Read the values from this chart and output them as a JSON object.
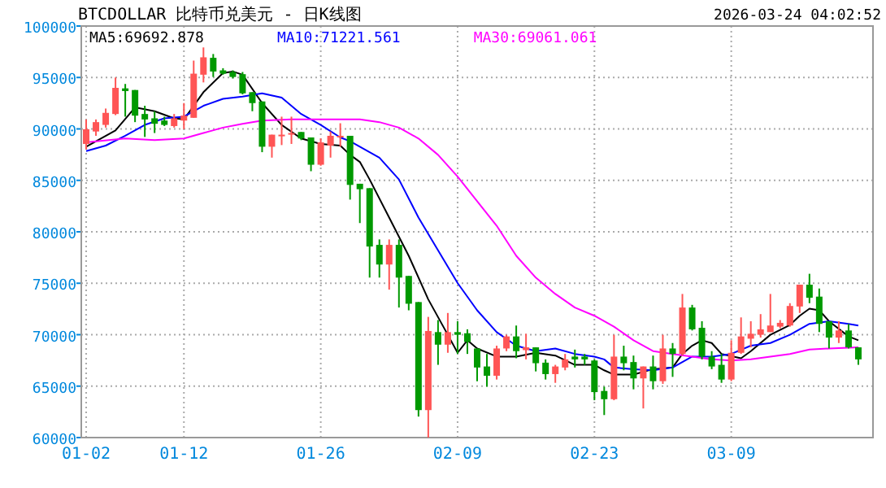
{
  "chart_data": {
    "type": "candlestick",
    "title": "BTCDOLLAR  比特币兑美元 - 日K线图",
    "subtitle": "2026-03-24 04:02:52",
    "x": [
      "2026-01-02",
      "2026-01-03",
      "2026-01-04",
      "2026-01-05",
      "2026-01-06",
      "2026-01-07",
      "2026-01-08",
      "2026-01-09",
      "2026-01-10",
      "2026-01-11",
      "2026-01-12",
      "2026-01-13",
      "2026-01-14",
      "2026-01-15",
      "2026-01-16",
      "2026-01-17",
      "2026-01-18",
      "2026-01-19",
      "2026-01-20",
      "2026-01-21",
      "2026-01-22",
      "2026-01-23",
      "2026-01-24",
      "2026-01-25",
      "2026-01-26",
      "2026-01-27",
      "2026-01-28",
      "2026-01-29",
      "2026-01-30",
      "2026-01-31",
      "2026-02-01",
      "2026-02-02",
      "2026-02-03",
      "2026-02-04",
      "2026-02-05",
      "2026-02-06",
      "2026-02-07",
      "2026-02-08",
      "2026-02-09",
      "2026-02-10",
      "2026-02-11",
      "2026-02-12",
      "2026-02-13",
      "2026-02-14",
      "2026-02-15",
      "2026-02-16",
      "2026-02-17",
      "2026-02-18",
      "2026-02-19",
      "2026-02-20",
      "2026-02-21",
      "2026-02-22",
      "2026-02-23",
      "2026-02-24",
      "2026-02-25",
      "2026-02-26",
      "2026-02-27",
      "2026-02-28",
      "2026-03-01",
      "2026-03-02",
      "2026-03-03",
      "2026-03-04",
      "2026-03-05",
      "2026-03-06",
      "2026-03-07",
      "2026-03-08",
      "2026-03-09",
      "2026-03-10",
      "2026-03-11",
      "2026-03-12",
      "2026-03-13",
      "2026-03-14",
      "2026-03-15",
      "2026-03-16",
      "2026-03-17",
      "2026-03-18",
      "2026-03-19",
      "2026-03-20",
      "2026-03-21",
      "2026-03-22"
    ],
    "ohlc": [
      [
        88540,
        90920,
        88010,
        89970
      ],
      [
        89750,
        90920,
        89330,
        90660
      ],
      [
        90390,
        91980,
        90130,
        91560
      ],
      [
        91450,
        95000,
        91340,
        93990
      ],
      [
        93940,
        94370,
        91190,
        93680
      ],
      [
        93780,
        93780,
        90660,
        91290
      ],
      [
        91450,
        92250,
        89220,
        90920
      ],
      [
        91030,
        91720,
        89600,
        90500
      ],
      [
        90810,
        91190,
        90280,
        90390
      ],
      [
        90280,
        91450,
        90130,
        91030
      ],
      [
        90810,
        92510,
        89970,
        91290
      ],
      [
        91080,
        96640,
        91080,
        95370
      ],
      [
        95270,
        97920,
        94520,
        96960
      ],
      [
        96910,
        97280,
        95050,
        95580
      ],
      [
        95690,
        95900,
        95270,
        95370
      ],
      [
        95530,
        95690,
        94900,
        95050
      ],
      [
        95320,
        95530,
        93360,
        93460
      ],
      [
        93570,
        93570,
        91720,
        92510
      ],
      [
        92670,
        92670,
        87740,
        88270
      ],
      [
        88270,
        89440,
        87210,
        89440
      ],
      [
        89330,
        91190,
        88430,
        89440
      ],
      [
        89440,
        91190,
        88540,
        89600
      ],
      [
        89700,
        89700,
        88910,
        89070
      ],
      [
        89170,
        89170,
        85890,
        86520
      ],
      [
        86520,
        89070,
        86420,
        88690
      ],
      [
        88380,
        89750,
        87210,
        89330
      ],
      [
        89170,
        90550,
        88270,
        89330
      ],
      [
        89330,
        89330,
        83130,
        84560
      ],
      [
        84670,
        84670,
        80850,
        84140
      ],
      [
        84240,
        84240,
        75550,
        78570
      ],
      [
        78730,
        79260,
        75550,
        76820
      ],
      [
        76820,
        79260,
        74380,
        78730
      ],
      [
        78730,
        79260,
        72640,
        75550
      ],
      [
        75710,
        75710,
        72370,
        73010
      ],
      [
        73170,
        73170,
        62040,
        62670
      ],
      [
        62670,
        71730,
        60000,
        70360
      ],
      [
        70250,
        71420,
        67070,
        69030
      ],
      [
        69030,
        72110,
        68240,
        70250
      ],
      [
        70250,
        71310,
        68130,
        69990
      ],
      [
        70140,
        70520,
        68130,
        69300
      ],
      [
        68660,
        68660,
        65480,
        66810
      ],
      [
        66910,
        68130,
        64950,
        66010
      ],
      [
        66010,
        68930,
        65640,
        68660
      ],
      [
        68660,
        69990,
        68400,
        69830
      ],
      [
        69830,
        70890,
        67710,
        68400
      ],
      [
        68500,
        70090,
        67600,
        68770
      ],
      [
        68770,
        68770,
        66430,
        67230
      ],
      [
        67280,
        67600,
        65640,
        66170
      ],
      [
        66170,
        67070,
        65320,
        66910
      ],
      [
        66810,
        68130,
        66540,
        67600
      ],
      [
        67870,
        68550,
        66810,
        67600
      ],
      [
        67870,
        68130,
        67070,
        67600
      ],
      [
        67490,
        67600,
        63630,
        64420
      ],
      [
        64530,
        64950,
        62190,
        63730
      ],
      [
        63730,
        69990,
        63630,
        67870
      ],
      [
        67870,
        68930,
        66540,
        67230
      ],
      [
        67340,
        67970,
        64690,
        65750
      ],
      [
        65750,
        66910,
        62830,
        66910
      ],
      [
        66910,
        67970,
        64690,
        65480
      ],
      [
        65480,
        69990,
        65220,
        68660
      ],
      [
        68660,
        69190,
        65900,
        68130
      ],
      [
        68130,
        73960,
        67970,
        72640
      ],
      [
        72640,
        72900,
        70410,
        70520
      ],
      [
        70670,
        71310,
        67600,
        67870
      ],
      [
        67870,
        68400,
        66650,
        66910
      ],
      [
        67070,
        68130,
        65320,
        65640
      ],
      [
        65640,
        69460,
        65480,
        68240
      ],
      [
        68240,
        71680,
        68130,
        69830
      ],
      [
        69610,
        71310,
        68770,
        70090
      ],
      [
        69990,
        72000,
        69720,
        70520
      ],
      [
        70250,
        73960,
        70250,
        70890
      ],
      [
        70780,
        71420,
        70620,
        71150
      ],
      [
        70890,
        73060,
        70780,
        72790
      ],
      [
        72740,
        74860,
        72110,
        74860
      ],
      [
        74860,
        75920,
        73060,
        73590
      ],
      [
        73700,
        74490,
        70250,
        71050
      ],
      [
        71310,
        71310,
        68660,
        69720
      ],
      [
        69720,
        71310,
        69190,
        70410
      ],
      [
        70410,
        71050,
        68660,
        68770
      ],
      [
        68770,
        68770,
        67070,
        67600
      ]
    ],
    "colors": [
      "#ff5555",
      "#ff5555",
      "#ff5555",
      "#ff5555",
      "#009900",
      "#009900",
      "#009900",
      "#009900",
      "#009900",
      "#ff5555",
      "#ff5555",
      "#ff5555",
      "#ff5555",
      "#009900",
      "#009900",
      "#009900",
      "#009900",
      "#009900",
      "#009900",
      "#ff5555",
      "#ff5555",
      "#ff5555",
      "#009900",
      "#009900",
      "#ff5555",
      "#ff5555",
      "#ff5555",
      "#009900",
      "#009900",
      "#009900",
      "#009900",
      "#ff5555",
      "#009900",
      "#009900",
      "#009900",
      "#ff5555",
      "#009900",
      "#ff5555",
      "#009900",
      "#009900",
      "#009900",
      "#009900",
      "#ff5555",
      "#ff5555",
      "#009900",
      "#ff5555",
      "#009900",
      "#009900",
      "#ff5555",
      "#ff5555",
      "#009900",
      "#009900",
      "#009900",
      "#009900",
      "#ff5555",
      "#009900",
      "#009900",
      "#ff5555",
      "#009900",
      "#ff5555",
      "#009900",
      "#ff5555",
      "#009900",
      "#009900",
      "#009900",
      "#009900",
      "#ff5555",
      "#ff5555",
      "#ff5555",
      "#ff5555",
      "#ff5555",
      "#ff5555",
      "#ff5555",
      "#ff5555",
      "#009900",
      "#009900",
      "#009900",
      "#ff5555",
      "#009900",
      "#009900"
    ],
    "series": [
      {
        "name": "MA5:69692.878",
        "type": "line",
        "color": "#000000",
        "x": [
          "2026-01-02",
          "2026-01-05",
          "2026-01-07",
          "2026-01-09",
          "2026-01-11",
          "2026-01-12",
          "2026-01-14",
          "2026-01-16",
          "2026-01-17",
          "2026-01-18",
          "2026-01-20",
          "2026-01-22",
          "2026-01-24",
          "2026-01-26",
          "2026-01-28",
          "2026-01-29",
          "2026-01-30",
          "2026-01-31",
          "2026-02-02",
          "2026-02-04",
          "2026-02-06",
          "2026-02-08",
          "2026-02-09",
          "2026-02-10",
          "2026-02-11",
          "2026-02-13",
          "2026-02-15",
          "2026-02-17",
          "2026-02-19",
          "2026-02-21",
          "2026-02-23",
          "2026-02-24",
          "2026-02-25",
          "2026-02-27",
          "2026-03-01",
          "2026-03-03",
          "2026-03-04",
          "2026-03-05",
          "2026-03-06",
          "2026-03-07",
          "2026-03-08",
          "2026-03-10",
          "2026-03-11",
          "2026-03-13",
          "2026-03-15",
          "2026-03-16",
          "2026-03-17",
          "2026-03-18",
          "2026-03-19",
          "2026-03-21",
          "2026-03-22"
        ],
        "values": [
          88270,
          89860,
          92090,
          91720,
          91030,
          90920,
          93570,
          95430,
          95580,
          95270,
          92510,
          90390,
          89070,
          88540,
          88380,
          87480,
          86790,
          85090,
          81380,
          77670,
          73430,
          69990,
          68240,
          69460,
          68660,
          67870,
          67870,
          68240,
          67970,
          67070,
          67070,
          66540,
          66120,
          66120,
          66650,
          66810,
          68130,
          68930,
          69460,
          69190,
          68130,
          67710,
          68400,
          69990,
          70940,
          71840,
          72530,
          72370,
          71310,
          69830,
          69460
        ]
      },
      {
        "name": "MA10:71221.561",
        "type": "line",
        "color": "#0000ff",
        "x": [
          "2026-01-02",
          "2026-01-04",
          "2026-01-06",
          "2026-01-08",
          "2026-01-10",
          "2026-01-12",
          "2026-01-14",
          "2026-01-16",
          "2026-01-18",
          "2026-01-20",
          "2026-01-22",
          "2026-01-24",
          "2026-01-26",
          "2026-01-28",
          "2026-01-29",
          "2026-01-30",
          "2026-02-01",
          "2026-02-03",
          "2026-02-05",
          "2026-02-07",
          "2026-02-09",
          "2026-02-11",
          "2026-02-13",
          "2026-02-15",
          "2026-02-17",
          "2026-02-19",
          "2026-02-21",
          "2026-02-23",
          "2026-02-24",
          "2026-02-25",
          "2026-02-27",
          "2026-03-01",
          "2026-03-03",
          "2026-03-05",
          "2026-03-07",
          "2026-03-09",
          "2026-03-11",
          "2026-03-13",
          "2026-03-15",
          "2026-03-17",
          "2026-03-19",
          "2026-03-21",
          "2026-03-22"
        ],
        "values": [
          87850,
          88380,
          89330,
          90390,
          91030,
          91190,
          92250,
          92930,
          93150,
          93460,
          93040,
          91450,
          90390,
          89170,
          88800,
          88270,
          87210,
          85090,
          81380,
          78200,
          75020,
          72370,
          70250,
          68930,
          68400,
          68660,
          68130,
          67870,
          67600,
          66810,
          66650,
          66540,
          66810,
          67870,
          67870,
          68130,
          68930,
          69190,
          69990,
          71050,
          71310,
          71050,
          70890
        ]
      },
      {
        "name": "MA30:69061.061",
        "type": "line",
        "color": "#ff00ff",
        "x": [
          "2026-01-02",
          "2026-01-06",
          "2026-01-09",
          "2026-01-12",
          "2026-01-14",
          "2026-01-16",
          "2026-01-18",
          "2026-01-20",
          "2026-01-23",
          "2026-01-26",
          "2026-01-29",
          "2026-01-30",
          "2026-02-01",
          "2026-02-03",
          "2026-02-05",
          "2026-02-07",
          "2026-02-09",
          "2026-02-11",
          "2026-02-13",
          "2026-02-15",
          "2026-02-17",
          "2026-02-19",
          "2026-02-21",
          "2026-02-23",
          "2026-02-25",
          "2026-02-27",
          "2026-03-01",
          "2026-03-03",
          "2026-03-05",
          "2026-03-07",
          "2026-03-09",
          "2026-03-11",
          "2026-03-13",
          "2026-03-15",
          "2026-03-17",
          "2026-03-19",
          "2026-03-22"
        ],
        "values": [
          88690,
          89070,
          88910,
          89070,
          89600,
          90130,
          90500,
          90810,
          90920,
          90920,
          90920,
          90920,
          90660,
          90130,
          89070,
          87480,
          85360,
          82970,
          80590,
          77670,
          75550,
          73960,
          72640,
          71840,
          70780,
          69460,
          68400,
          68130,
          67870,
          67600,
          67490,
          67600,
          67870,
          68130,
          68550,
          68660,
          68770
        ]
      }
    ],
    "xlim": [
      "2026-01-01T12:00",
      "2026-03-23T12:00"
    ],
    "xticks": [
      {
        "value": "2026-01-02",
        "label": "01-02"
      },
      {
        "value": "2026-01-12",
        "label": "01-12"
      },
      {
        "value": "2026-01-26",
        "label": "01-26"
      },
      {
        "value": "2026-02-09",
        "label": "02-09"
      },
      {
        "value": "2026-02-23",
        "label": "02-23"
      },
      {
        "value": "2026-03-09",
        "label": "03-09"
      }
    ],
    "ylim": [
      60000,
      100000
    ],
    "yticks": [
      60000,
      65000,
      70000,
      75000,
      80000,
      85000,
      90000,
      95000,
      100000
    ],
    "grid": true,
    "legend": "top"
  }
}
